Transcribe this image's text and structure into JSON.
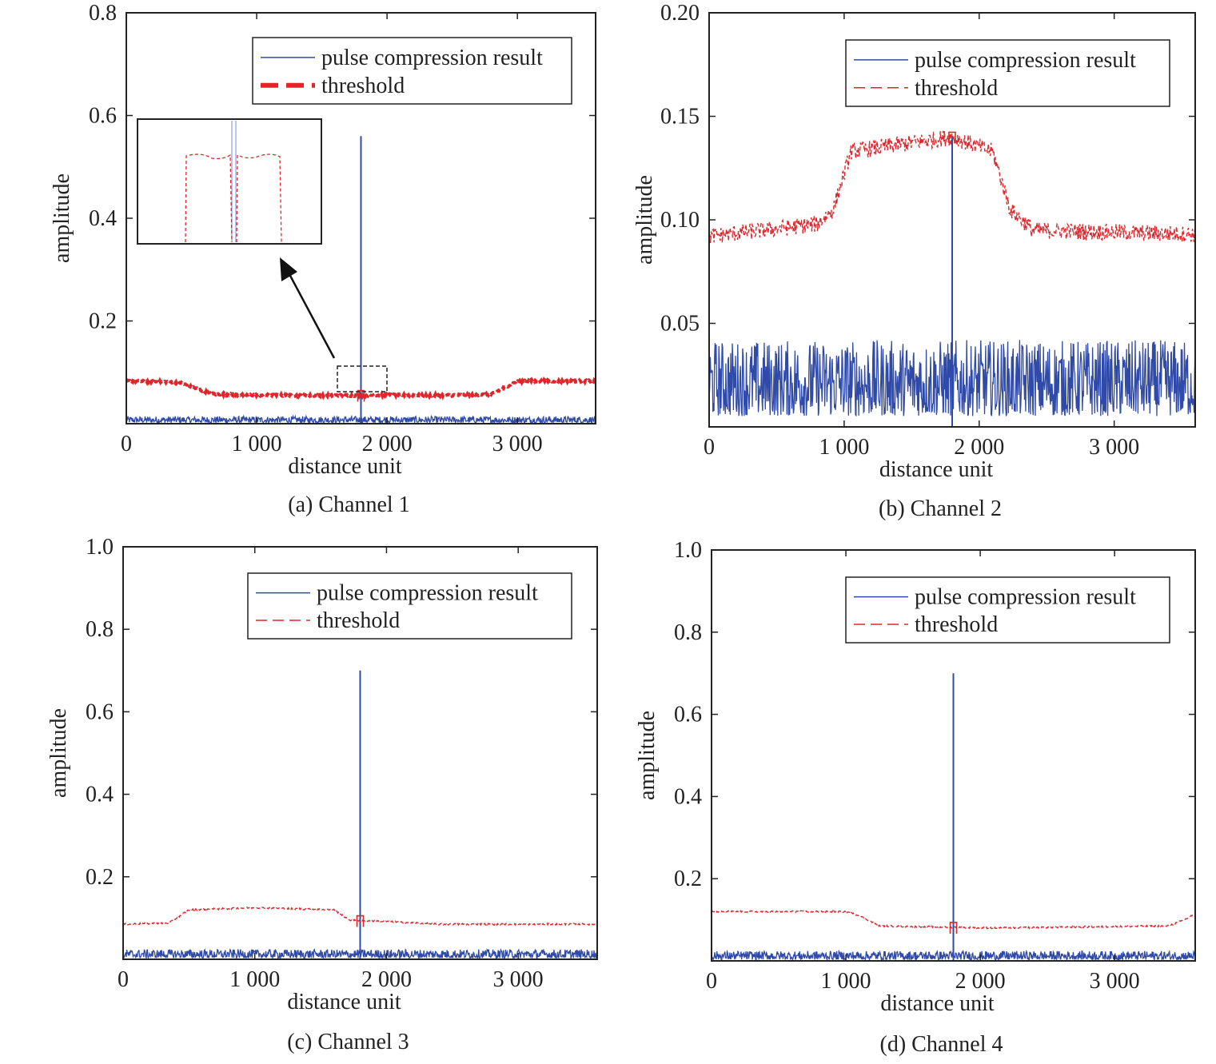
{
  "chart_data": [
    {
      "type": "line",
      "caption": "(a) Channel 1",
      "xlabel": "distance unit",
      "ylabel": "amplitude",
      "xlim": [
        0,
        3600
      ],
      "ylim": [
        0,
        0.8
      ],
      "xticks": [
        0,
        1000,
        2000,
        3000
      ],
      "xtick_labels": [
        "0",
        "1 000",
        "2 000",
        "3 000"
      ],
      "yticks": [
        0.2,
        0.4,
        0.6,
        0.8
      ],
      "ytick_labels": [
        "0.2",
        "0.4",
        "0.6",
        "0.8"
      ],
      "legend": {
        "placement": "top-right",
        "entries": [
          "pulse compression result",
          "threshold"
        ]
      },
      "threshold_style": "bold-dash",
      "inset": true,
      "series": [
        {
          "name": "pulse compression result",
          "color": "#2f4aa8",
          "noise_level": 0.012,
          "peak": {
            "x": 1800,
            "y": 0.56
          }
        },
        {
          "name": "threshold",
          "color": "#e0262b",
          "x": [
            0,
            400,
            650,
            900,
            1300,
            1750,
            2000,
            2400,
            2800,
            3000,
            3600
          ],
          "y": [
            0.083,
            0.081,
            0.058,
            0.056,
            0.055,
            0.055,
            0.056,
            0.055,
            0.057,
            0.083,
            0.083
          ],
          "jitter": 0.002
        }
      ]
    },
    {
      "type": "line",
      "caption": "(b) Channel 2",
      "xlabel": "distance unit",
      "ylabel": "amplitude",
      "xlim": [
        0,
        3600
      ],
      "ylim": [
        0,
        0.2
      ],
      "xticks": [
        0,
        1000,
        2000,
        3000
      ],
      "xtick_labels": [
        "0",
        "1 000",
        "2 000",
        "3 000"
      ],
      "yticks": [
        0.05,
        0.1,
        0.15,
        0.2
      ],
      "ytick_labels": [
        "0.05",
        "0.10",
        "0.15",
        "0.20"
      ],
      "legend": {
        "placement": "top-right",
        "entries": [
          "pulse compression result",
          "threshold"
        ]
      },
      "threshold_style": "thin-dash",
      "series": [
        {
          "name": "pulse compression result",
          "color": "#2f4aa8",
          "noise_level": 0.035,
          "peak": {
            "x": 1800,
            "y": 0.14
          }
        },
        {
          "name": "threshold",
          "color": "#e0262b",
          "x": [
            0,
            800,
            920,
            1050,
            1800,
            2100,
            2230,
            2400,
            3600
          ],
          "y": [
            0.092,
            0.098,
            0.105,
            0.133,
            0.14,
            0.133,
            0.105,
            0.095,
            0.093
          ],
          "jitter": 0.004
        }
      ]
    },
    {
      "type": "line",
      "caption": "(c) Channel 3",
      "xlabel": "distance unit",
      "ylabel": "amplitude",
      "xlim": [
        0,
        3600
      ],
      "ylim": [
        0,
        1.0
      ],
      "xticks": [
        0,
        1000,
        2000,
        3000
      ],
      "xtick_labels": [
        "0",
        "1 000",
        "2 000",
        "3 000"
      ],
      "yticks": [
        0.2,
        0.4,
        0.6,
        0.8,
        1.0
      ],
      "ytick_labels": [
        "0.2",
        "0.4",
        "0.6",
        "0.8",
        "1.0"
      ],
      "legend": {
        "placement": "top-right",
        "entries": [
          "pulse compression result",
          "threshold"
        ]
      },
      "threshold_style": "thin-dash",
      "series": [
        {
          "name": "pulse compression result",
          "color": "#2f4aa8",
          "noise_level": 0.02,
          "peak": {
            "x": 1800,
            "y": 0.7
          }
        },
        {
          "name": "threshold",
          "color": "#e0262b",
          "x": [
            0,
            350,
            500,
            1000,
            1600,
            1720,
            2100,
            2400,
            3600
          ],
          "y": [
            0.085,
            0.088,
            0.12,
            0.125,
            0.12,
            0.095,
            0.09,
            0.085,
            0.085
          ],
          "jitter": 0.002
        }
      ]
    },
    {
      "type": "line",
      "caption": "(d) Channel 4",
      "xlabel": "distance unit",
      "ylabel": "amplitude",
      "xlim": [
        0,
        3600
      ],
      "ylim": [
        0,
        1.0
      ],
      "xticks": [
        0,
        1000,
        2000,
        3000
      ],
      "xtick_labels": [
        "0",
        "1 000",
        "2 000",
        "3 000"
      ],
      "yticks": [
        0.2,
        0.4,
        0.6,
        0.8,
        1.0
      ],
      "ytick_labels": [
        "0.2",
        "0.4",
        "0.6",
        "0.8",
        "1.0"
      ],
      "legend": {
        "placement": "top-right",
        "entries": [
          "pulse compression result",
          "threshold"
        ]
      },
      "threshold_style": "thin-dash",
      "series": [
        {
          "name": "pulse compression result",
          "color": "#2f4aa8",
          "noise_level": 0.02,
          "peak": {
            "x": 1800,
            "y": 0.7
          }
        },
        {
          "name": "threshold",
          "color": "#e0262b",
          "x": [
            0,
            1000,
            1100,
            1250,
            2100,
            3400,
            3520,
            3600
          ],
          "y": [
            0.12,
            0.12,
            0.11,
            0.085,
            0.08,
            0.085,
            0.1,
            0.115
          ],
          "jitter": 0.002
        }
      ]
    }
  ]
}
